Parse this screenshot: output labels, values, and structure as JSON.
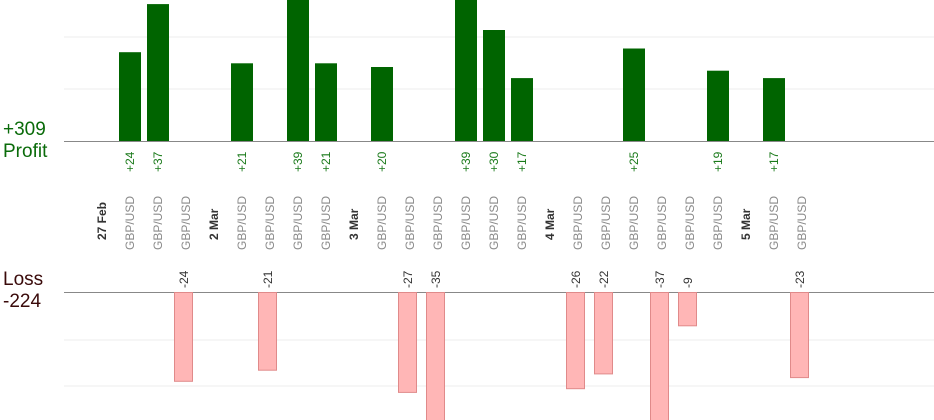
{
  "totals": {
    "profit_value": "+309",
    "profit_label": "Profit",
    "loss_label": "Loss",
    "loss_value": "-224"
  },
  "chart_data": {
    "type": "bar",
    "colors": {
      "profit": "#006400",
      "loss": "#ffb6b6",
      "loss_stroke": "#e08a8a",
      "profit_text": "#1a7a1a",
      "loss_text": "#333333"
    },
    "trades": [
      {
        "label": "GBP/USD",
        "value": 24,
        "value_label": "+24"
      },
      {
        "label": "GBP/USD",
        "value": 37,
        "value_label": "+37"
      },
      {
        "label": "GBP/USD",
        "value": -24,
        "value_label": "-24"
      },
      {
        "label": "GBP/USD",
        "value": 21,
        "value_label": "+21"
      },
      {
        "label": "GBP/USD",
        "value": -21,
        "value_label": "-21"
      },
      {
        "label": "GBP/USD",
        "value": 39,
        "value_label": "+39"
      },
      {
        "label": "GBP/USD",
        "value": 21,
        "value_label": "+21"
      },
      {
        "label": "GBP/USD",
        "value": 20,
        "value_label": "+20"
      },
      {
        "label": "GBP/USD",
        "value": -27,
        "value_label": "-27"
      },
      {
        "label": "GBP/USD",
        "value": -35,
        "value_label": "-35"
      },
      {
        "label": "GBP/USD",
        "value": 39,
        "value_label": "+39"
      },
      {
        "label": "GBP/USD",
        "value": 30,
        "value_label": "+30"
      },
      {
        "label": "GBP/USD",
        "value": 17,
        "value_label": "+17"
      },
      {
        "label": "GBP/USD",
        "value": -26,
        "value_label": "-26"
      },
      {
        "label": "GBP/USD",
        "value": -22,
        "value_label": "-22"
      },
      {
        "label": "GBP/USD",
        "value": 25,
        "value_label": "+25"
      },
      {
        "label": "GBP/USD",
        "value": -37,
        "value_label": "-37"
      },
      {
        "label": "GBP/USD",
        "value": -9,
        "value_label": "-9"
      },
      {
        "label": "GBP/USD",
        "value": 19,
        "value_label": "+19"
      },
      {
        "label": "GBP/USD",
        "value": 17,
        "value_label": "+17"
      },
      {
        "label": "GBP/USD",
        "value": -23,
        "value_label": "-23"
      }
    ],
    "dates": [
      {
        "label": "27 Feb",
        "before_trade": 0
      },
      {
        "label": "2 Mar",
        "before_trade": 3
      },
      {
        "label": "3 Mar",
        "before_trade": 7
      },
      {
        "label": "4 Mar",
        "before_trade": 13
      },
      {
        "label": "5 Mar",
        "before_trade": 19
      }
    ]
  }
}
